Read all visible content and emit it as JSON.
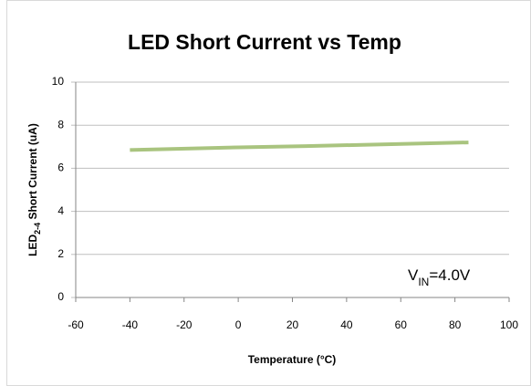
{
  "chart_data": {
    "type": "line",
    "title": "LED Short Current vs Temp",
    "x_label": "Temperature (°C)",
    "y_label": [
      "LED",
      "2-4",
      " Short Current (uA)"
    ],
    "annotation": [
      "V",
      "IN",
      "=4.0V"
    ],
    "series": [
      {
        "color": "#a9c47f",
        "x": [
          -40,
          0,
          25,
          85
        ],
        "values": [
          6.85,
          6.97,
          7.03,
          7.2
        ]
      }
    ],
    "xlim": [
      -60,
      100
    ],
    "xticks": [
      -60,
      -40,
      -20,
      0,
      20,
      40,
      60,
      80,
      100
    ],
    "ylim": [
      0,
      10
    ],
    "yticks": [
      0,
      2,
      4,
      6,
      8,
      10
    ],
    "grid": true
  }
}
